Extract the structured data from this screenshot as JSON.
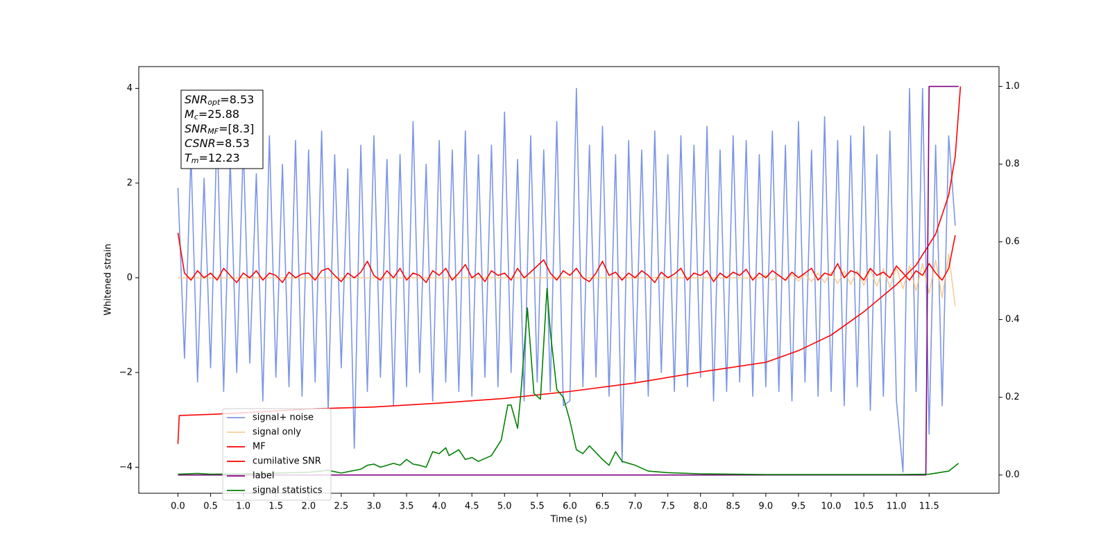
{
  "chart_data": {
    "type": "line",
    "xlabel": "Time (s)",
    "ylabel": "Whitened strain",
    "annotation": [
      {
        "main": "SNR",
        "sub": "opt",
        "rest": "=8.53"
      },
      {
        "main": "M",
        "sub": "c",
        "rest": "=25.88"
      },
      {
        "main": "SNR",
        "sub": "MF",
        "rest": "=[8.3]"
      },
      {
        "main": "CSNR",
        "rest": "=8.53"
      },
      {
        "main": "T",
        "sub": "m",
        "rest": "=12.23"
      }
    ],
    "xlim": [
      -0.6,
      12.57
    ],
    "ylim": [
      -4.55,
      4.46
    ],
    "y2lim": [
      -0.047,
      1.051
    ],
    "xticks": [
      {
        "value": 0,
        "label": "0.0"
      },
      0.5,
      {
        "value": 1,
        "label": "1.0"
      },
      1.5,
      {
        "value": 2,
        "label": "2.0"
      },
      2.5,
      {
        "value": 3,
        "label": "3.0"
      },
      3.5,
      {
        "value": 4,
        "label": "4.0"
      },
      4.5,
      {
        "value": 5,
        "label": "5.0"
      },
      5.5,
      {
        "value": 6,
        "label": "6.0"
      },
      6.5,
      {
        "value": 7,
        "label": "7.0"
      },
      7.5,
      {
        "value": 8,
        "label": "8.0"
      },
      8.5,
      {
        "value": 9,
        "label": "9.0"
      },
      9.5,
      {
        "value": 10,
        "label": "10.0"
      },
      10.5,
      {
        "value": 11,
        "label": "11.0"
      },
      11.5
    ],
    "yticks": [
      {
        "value": -4,
        "label": "−4"
      },
      {
        "value": -2,
        "label": "−2"
      },
      0,
      2,
      4
    ],
    "y2ticks": [
      {
        "value": 0,
        "label": "0.0"
      },
      0.2,
      0.4,
      0.6,
      0.8,
      {
        "value": 1,
        "label": "1.0"
      }
    ],
    "legend": "lower left",
    "x": [
      0,
      0.1,
      0.2,
      0.3,
      0.4,
      0.5,
      0.6,
      0.7,
      0.8,
      0.9,
      1,
      1.1,
      1.2,
      1.3,
      1.4,
      1.5,
      1.6,
      1.7,
      1.8,
      1.9,
      2,
      2.1,
      2.2,
      2.3,
      2.4,
      2.5,
      2.6,
      2.7,
      2.8,
      2.9,
      3,
      3.1,
      3.2,
      3.3,
      3.4,
      3.5,
      3.6,
      3.7,
      3.8,
      3.9,
      4,
      4.1,
      4.2,
      4.3,
      4.4,
      4.5,
      4.6,
      4.7,
      4.8,
      4.9,
      5,
      5.1,
      5.2,
      5.3,
      5.4,
      5.5,
      5.6,
      5.7,
      5.8,
      5.9,
      6,
      6.1,
      6.2,
      6.3,
      6.4,
      6.5,
      6.6,
      6.7,
      6.8,
      6.9,
      7,
      7.1,
      7.2,
      7.3,
      7.4,
      7.5,
      7.6,
      7.7,
      7.8,
      7.9,
      8,
      8.1,
      8.2,
      8.3,
      8.4,
      8.5,
      8.6,
      8.7,
      8.8,
      8.9,
      9,
      9.1,
      9.2,
      9.3,
      9.4,
      9.5,
      9.6,
      9.7,
      9.8,
      9.9,
      10,
      10.1,
      10.2,
      10.3,
      10.4,
      10.5,
      10.6,
      10.7,
      10.8,
      10.9,
      11,
      11.1,
      11.2,
      11.3,
      11.4,
      11.5,
      11.6,
      11.7,
      11.8,
      11.9
    ],
    "series": [
      {
        "name": "signal+ noise",
        "color": "#7b95e6",
        "values": [
          1.9,
          -1.7,
          2.6,
          -2.2,
          2.1,
          -1.9,
          3.2,
          -2.4,
          2.5,
          -2.0,
          2.8,
          -1.8,
          2.2,
          -2.6,
          3.0,
          -2.1,
          2.4,
          -2.3,
          2.9,
          -2.5,
          2.7,
          -2.2,
          3.1,
          -2.8,
          2.6,
          -1.9,
          2.3,
          -3.6,
          2.8,
          -2.4,
          3.0,
          -2.1,
          2.5,
          -2.7,
          2.6,
          -2.3,
          3.3,
          -2.0,
          2.4,
          -2.6,
          2.9,
          -2.2,
          2.7,
          -2.4,
          3.1,
          -2.5,
          2.6,
          -2.1,
          2.8,
          -2.3,
          3.5,
          -2.0,
          2.5,
          -2.6,
          3.0,
          -2.2,
          2.7,
          -2.4,
          3.3,
          -2.7,
          -2.6,
          4.0,
          -2.3,
          2.8,
          -2.1,
          3.2,
          -2.5,
          2.6,
          -3.9,
          2.9,
          -2.2,
          2.7,
          -2.5,
          3.1,
          -2.0,
          2.6,
          -2.4,
          3.0,
          -2.3,
          2.8,
          -2.1,
          3.2,
          -2.6,
          2.7,
          -2.4,
          3.0,
          -2.2,
          2.9,
          -2.5,
          2.6,
          -2.3,
          3.1,
          -2.4,
          2.8,
          -2.6,
          3.3,
          -2.2,
          2.7,
          -2.5,
          3.4,
          -2.4,
          2.9,
          -2.7,
          3.0,
          -2.3,
          3.2,
          -2.8,
          2.6,
          -2.5,
          3.1,
          -2.6,
          -4.1,
          4.0,
          -2.4,
          4.0,
          -3.3,
          2.8,
          -2.7,
          3.0,
          1.1
        ]
      },
      {
        "name": "signal only",
        "color": "#f5c27a",
        "values": [
          0,
          0,
          0,
          0,
          0,
          0,
          0,
          0,
          0,
          0,
          0,
          0,
          0,
          0,
          0,
          0,
          0,
          0,
          0,
          0,
          0,
          0,
          0,
          0,
          0,
          0,
          0,
          0,
          0,
          0,
          0,
          0,
          0,
          0,
          0,
          0,
          0,
          0,
          0,
          0,
          0,
          0,
          0,
          0,
          0,
          0,
          0,
          0,
          0,
          0,
          0,
          0,
          0,
          0,
          0,
          0,
          0,
          0,
          0,
          0,
          0,
          0,
          0,
          0,
          0,
          0,
          0,
          0,
          0,
          0,
          0,
          0,
          0,
          0,
          0,
          0,
          0,
          0,
          0,
          0,
          0,
          0,
          0,
          0,
          0,
          0,
          0,
          0,
          0,
          0,
          0.05,
          -0.05,
          0.06,
          -0.06,
          0.07,
          -0.07,
          0.08,
          -0.08,
          0.1,
          -0.1,
          0.12,
          -0.12,
          0.14,
          -0.14,
          0.16,
          -0.16,
          0.18,
          -0.18,
          0.2,
          -0.2,
          0.22,
          -0.23,
          0.25,
          -0.27,
          0.3,
          -0.33,
          0.37,
          -0.42,
          0.5,
          -0.6
        ]
      },
      {
        "name": "MF",
        "color": "#ff0000",
        "values": [
          0.95,
          0.1,
          -0.05,
          0.15,
          0.0,
          0.1,
          -0.05,
          0.2,
          0.05,
          -0.1,
          0.1,
          0.0,
          0.15,
          -0.05,
          0.1,
          0.05,
          -0.1,
          0.12,
          0.0,
          0.08,
          0.1,
          -0.05,
          0.15,
          0.2,
          0.05,
          -0.08,
          0.1,
          0.0,
          0.12,
          0.35,
          0.05,
          -0.05,
          0.15,
          0.0,
          0.2,
          -0.05,
          0.1,
          0.05,
          -0.1,
          0.15,
          0.05,
          0.2,
          -0.05,
          0.1,
          0.28,
          0.0,
          0.1,
          -0.08,
          0.15,
          0.05,
          0.1,
          -0.05,
          0.2,
          0.0,
          0.12,
          0.25,
          0.38,
          0.1,
          -0.05,
          0.15,
          0.05,
          0.2,
          0.0,
          -0.08,
          0.1,
          0.35,
          0.05,
          0.12,
          -0.05,
          0.1,
          0.0,
          0.15,
          0.05,
          -0.1,
          0.12,
          0.0,
          0.08,
          0.2,
          -0.05,
          0.1,
          0.05,
          0.15,
          -0.08,
          0.1,
          0.0,
          0.12,
          0.05,
          0.18,
          -0.05,
          0.1,
          0.0,
          0.15,
          0.05,
          -0.05,
          0.12,
          0.0,
          0.1,
          0.2,
          -0.05,
          0.1,
          0.05,
          0.3,
          0.0,
          0.15,
          0.1,
          -0.05,
          0.2,
          0.05,
          0.12,
          0.0,
          0.25,
          0.1,
          -0.05,
          0.15,
          0.05,
          0.3,
          0.1,
          -0.05,
          0.2,
          0.9
        ]
      },
      {
        "name": "cumilative SNR",
        "color": "#ff0000",
        "axis": "y2",
        "x": [
          0,
          0.02,
          0.5,
          1,
          2,
          3,
          4,
          5,
          6,
          7,
          8,
          9,
          9.5,
          10,
          10.5,
          11,
          11.3,
          11.6,
          11.8,
          11.9,
          11.98
        ],
        "values": [
          0.08,
          0.153,
          0.156,
          0.16,
          0.17,
          0.175,
          0.185,
          0.197,
          0.215,
          0.237,
          0.265,
          0.29,
          0.32,
          0.36,
          0.42,
          0.49,
          0.54,
          0.62,
          0.72,
          0.82,
          1.0
        ]
      },
      {
        "name": "label",
        "color": "#800080",
        "axis": "y2",
        "x": [
          0,
          11.45,
          11.5,
          11.95
        ],
        "values": [
          0,
          0,
          1,
          1
        ]
      },
      {
        "name": "signal statistics",
        "color": "#008000",
        "axis": "y2",
        "x": [
          0,
          0.3,
          0.5,
          1,
          1.5,
          2,
          2.3,
          2.5,
          2.8,
          2.9,
          3,
          3.1,
          3.3,
          3.4,
          3.5,
          3.6,
          3.7,
          3.8,
          3.9,
          4,
          4.1,
          4.15,
          4.3,
          4.4,
          4.5,
          4.6,
          4.8,
          4.95,
          5.05,
          5.1,
          5.2,
          5.25,
          5.35,
          5.45,
          5.55,
          5.65,
          5.7,
          5.8,
          5.9,
          6,
          6.1,
          6.2,
          6.3,
          6.5,
          6.6,
          6.7,
          6.8,
          7,
          7.2,
          7.5,
          8,
          9,
          10,
          11,
          11.5,
          11.8,
          11.95
        ],
        "values": [
          0.002,
          0.004,
          0.002,
          0.003,
          0.005,
          0.007,
          0.012,
          0.005,
          0.015,
          0.025,
          0.028,
          0.02,
          0.03,
          0.025,
          0.04,
          0.028,
          0.025,
          0.02,
          0.06,
          0.055,
          0.07,
          0.05,
          0.065,
          0.04,
          0.045,
          0.035,
          0.05,
          0.09,
          0.18,
          0.18,
          0.12,
          0.21,
          0.43,
          0.21,
          0.195,
          0.48,
          0.37,
          0.22,
          0.2,
          0.14,
          0.065,
          0.055,
          0.075,
          0.04,
          0.025,
          0.06,
          0.035,
          0.025,
          0.01,
          0.006,
          0.003,
          0.001,
          0.001,
          0.001,
          0.002,
          0.01,
          0.03
        ]
      }
    ]
  }
}
